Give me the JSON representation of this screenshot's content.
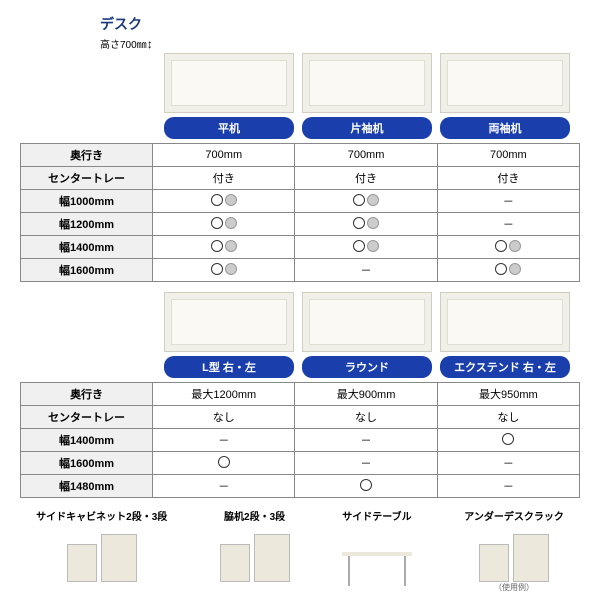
{
  "title": "デスク",
  "heightLabel": "高さ700㎜",
  "section1": {
    "pills": [
      "平机",
      "片袖机",
      "両袖机"
    ],
    "rows": [
      {
        "label": "奥行き",
        "cells": [
          "700mm",
          "700mm",
          "700mm"
        ],
        "type": "text"
      },
      {
        "label": "センタートレー",
        "cells": [
          "付き",
          "付き",
          "付き"
        ],
        "type": "text"
      },
      {
        "label": "幅1000mm",
        "cells": [
          "oo",
          "oo",
          "-"
        ],
        "type": "sym"
      },
      {
        "label": "幅1200mm",
        "cells": [
          "oo",
          "oo",
          "-"
        ],
        "type": "sym"
      },
      {
        "label": "幅1400mm",
        "cells": [
          "oo",
          "oo",
          "oo"
        ],
        "type": "sym"
      },
      {
        "label": "幅1600mm",
        "cells": [
          "oo",
          "-",
          "oo"
        ],
        "type": "sym"
      }
    ]
  },
  "section2": {
    "pills": [
      "L型 右・左",
      "ラウンド",
      "エクステンド 右・左"
    ],
    "rows": [
      {
        "label": "奥行き",
        "cells": [
          "最大1200mm",
          "最大900mm",
          "最大950mm"
        ],
        "type": "text"
      },
      {
        "label": "センタートレー",
        "cells": [
          "なし",
          "なし",
          "なし"
        ],
        "type": "text"
      },
      {
        "label": "幅1400mm",
        "cells": [
          "-",
          "-",
          "o"
        ],
        "type": "sym"
      },
      {
        "label": "幅1600mm",
        "cells": [
          "o",
          "-",
          "-"
        ],
        "type": "sym"
      },
      {
        "label": "幅1480mm",
        "cells": [
          "-",
          "o",
          "-"
        ],
        "type": "sym"
      }
    ]
  },
  "bottom": [
    {
      "label": "サイドキャビネット2段・3段"
    },
    {
      "label": "脇机2段・3段"
    },
    {
      "label": "サイドテーブル"
    },
    {
      "label": "アンダーデスクラック",
      "note": "（使用例）"
    }
  ],
  "colors": {
    "pillBg": "#1a3fad",
    "titleColor": "#1a3a7a",
    "border": "#888888"
  }
}
